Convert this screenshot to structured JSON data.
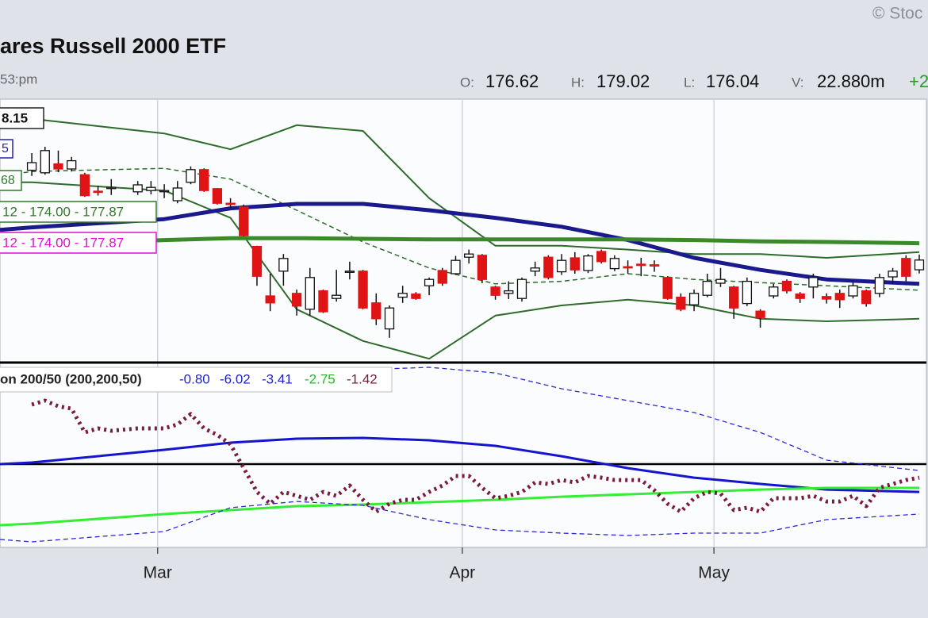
{
  "header": {
    "watermark": "© Stoc",
    "title": "ares Russell 2000 ETF",
    "time": "53:pm",
    "open_label": "O:",
    "open": "176.62",
    "high_label": "H:",
    "high": "179.02",
    "low_label": "L:",
    "low": "176.04",
    "volume_label": "V:",
    "volume": "22.880m",
    "change": "+2",
    "tags": [
      "8.15",
      "5",
      "68",
      "12 - 174.00 - 177.87",
      "12 - 174.00 - 177.87"
    ],
    "indicator_legend": "on 200/50 (200,200,50)",
    "indicator_values": [
      "-0.80",
      "-6.02",
      "-3.41",
      "-2.75",
      "-1.42"
    ]
  },
  "chart_data": [
    {
      "type": "candlestick",
      "x": [
        0,
        1,
        2,
        3,
        4,
        5,
        6,
        8,
        9,
        10,
        11,
        12,
        13,
        14,
        15,
        16,
        17,
        18,
        19,
        20,
        21,
        22,
        23,
        24,
        25,
        26,
        27,
        28,
        29,
        30,
        31,
        32,
        33,
        34,
        35,
        36,
        37,
        38,
        39,
        40,
        41,
        42,
        43,
        44,
        45,
        46,
        47,
        48,
        49,
        50,
        51,
        52,
        53,
        54,
        55,
        56,
        57,
        58,
        59,
        60,
        61,
        62,
        63,
        64,
        65,
        66,
        67
      ],
      "open": [
        192.3,
        191.9,
        193.3,
        192.5,
        191.6,
        189.0,
        189.5,
        188.9,
        189.1,
        189.0,
        187.5,
        190.4,
        192.4,
        189.4,
        187.1,
        186.5,
        180.3,
        172.5,
        176.4,
        172.9,
        170.4,
        173.3,
        172.1,
        176.3,
        176.4,
        171.4,
        167.3,
        172.3,
        172.8,
        174.1,
        176.5,
        176.0,
        178.6,
        178.9,
        173.9,
        172.9,
        172.1,
        176.4,
        178.6,
        176.3,
        178.5,
        176.5,
        179.5,
        176.8,
        177.1,
        177.5,
        177.4,
        175.4,
        172.3,
        171.1,
        172.6,
        174.5,
        173.9,
        171.3,
        170.1,
        172.5,
        174.8,
        172.8,
        173.9,
        172.4,
        172.9,
        172.5,
        173.3,
        172.9,
        175.5,
        178.4,
        176.62
      ],
      "high": [
        195.0,
        196.0,
        195.4,
        194.4,
        191.9,
        189.8,
        190.9,
        190.6,
        190.6,
        190.1,
        190.6,
        192.9,
        192.6,
        189.5,
        187.9,
        186.9,
        180.4,
        176.0,
        179.1,
        173.5,
        176.9,
        173.5,
        176.6,
        177.9,
        176.6,
        172.9,
        171.0,
        174.1,
        173.1,
        175.4,
        176.9,
        178.8,
        179.8,
        179.1,
        174.1,
        174.8,
        175.4,
        177.9,
        178.9,
        179.1,
        179.4,
        179.1,
        179.8,
        178.9,
        178.1,
        178.5,
        178.1,
        175.6,
        172.9,
        173.5,
        176.0,
        176.9,
        174.1,
        175.4,
        170.4,
        174.4,
        175.1,
        173.1,
        176.0,
        172.9,
        173.5,
        174.8,
        173.5,
        176.0,
        176.9,
        178.9,
        179.02
      ],
      "low": [
        191.4,
        191.6,
        192.0,
        192.1,
        188.1,
        188.3,
        188.4,
        188.4,
        188.5,
        187.9,
        187.1,
        190.1,
        188.9,
        186.9,
        186.4,
        181.9,
        174.1,
        170.1,
        174.1,
        169.4,
        169.4,
        169.8,
        171.6,
        175.1,
        170.4,
        167.9,
        165.9,
        171.4,
        171.9,
        172.6,
        174.1,
        175.8,
        177.6,
        174.5,
        171.9,
        172.0,
        171.6,
        175.6,
        175.1,
        175.8,
        176.0,
        176.1,
        177.6,
        176.4,
        176.0,
        175.6,
        176.3,
        171.9,
        170.1,
        170.1,
        172.3,
        173.9,
        168.9,
        170.9,
        167.5,
        172.1,
        172.9,
        171.4,
        172.1,
        171.3,
        170.6,
        172.1,
        170.8,
        172.3,
        174.4,
        174.8,
        176.04
      ],
      "close": [
        193.5,
        195.4,
        192.5,
        193.8,
        188.3,
        188.9,
        189.6,
        190.0,
        189.6,
        189.1,
        189.5,
        192.4,
        189.1,
        187.1,
        186.9,
        182.0,
        175.6,
        171.4,
        178.4,
        170.9,
        175.4,
        170.0,
        172.6,
        176.4,
        170.6,
        168.9,
        170.6,
        172.9,
        172.1,
        175.1,
        174.5,
        178.1,
        179.1,
        175.1,
        172.6,
        173.3,
        175.1,
        176.9,
        175.4,
        178.1,
        176.6,
        178.8,
        177.9,
        178.4,
        177.0,
        177.3,
        177.3,
        172.1,
        170.4,
        172.9,
        174.8,
        175.1,
        170.6,
        174.8,
        169.1,
        173.9,
        173.3,
        172.1,
        175.4,
        172.0,
        171.9,
        174.1,
        171.3,
        175.4,
        176.4,
        175.6,
        178.15
      ],
      "up_color": "#ffffff",
      "down_color": "#e01414",
      "xlim": [
        -2.4,
        67.66
      ],
      "ylim": [
        162,
        203.5
      ],
      "lines": [
        {
          "color": "#2f6b2a",
          "width": 2,
          "dash": null,
          "x": [
            -2.4,
            0,
            10,
            15,
            20,
            25,
            30,
            35,
            40,
            45,
            50,
            55,
            60,
            67
          ],
          "values": [
            200.6,
            200.4,
            198.1,
            195.6,
            199.4,
            198.5,
            187.9,
            180.4,
            180.4,
            179.8,
            179.1,
            179.1,
            178.5,
            179.4
          ]
        },
        {
          "color": "#2f6b2a",
          "width": 1.5,
          "dash": "6 4",
          "x": [
            -2.4,
            0,
            10,
            15,
            20,
            25,
            30,
            35,
            40,
            45,
            50,
            55,
            60,
            67
          ],
          "values": [
            191.4,
            192.1,
            192.6,
            190.9,
            186.0,
            181.0,
            176.9,
            174.4,
            174.8,
            176.0,
            175.1,
            174.6,
            174.1,
            173.4
          ]
        },
        {
          "color": "#2f6b2a",
          "width": 2,
          "dash": null,
          "x": [
            -2.4,
            0,
            10,
            15,
            20,
            25,
            30,
            35,
            40,
            45,
            50,
            55,
            60,
            67
          ],
          "values": [
            190.4,
            190.4,
            189.1,
            184.8,
            170.4,
            165.4,
            162.6,
            169.4,
            171.0,
            171.9,
            171.0,
            168.9,
            168.5,
            168.9
          ]
        },
        {
          "color": "#1a1a8c",
          "width": 5,
          "dash": null,
          "x": [
            -2.4,
            0,
            10,
            15,
            20,
            25,
            30,
            35,
            40,
            45,
            50,
            55,
            60,
            67
          ],
          "values": [
            182.9,
            183.3,
            184.6,
            186.3,
            187.0,
            187.0,
            186.0,
            184.8,
            183.4,
            181.3,
            178.5,
            176.6,
            175.1,
            174.4
          ]
        },
        {
          "color": "#3b8a2a",
          "width": 5,
          "dash": null,
          "x": [
            -2.4,
            0,
            10,
            15,
            20,
            25,
            30,
            35,
            40,
            45,
            50,
            55,
            60,
            67
          ],
          "values": [
            180.4,
            180.5,
            181.3,
            181.6,
            181.6,
            181.5,
            181.4,
            181.4,
            181.4,
            181.4,
            181.3,
            181.1,
            181.0,
            180.8
          ]
        }
      ]
    },
    {
      "type": "line",
      "xlim": [
        -2.4,
        67.66
      ],
      "ylim": [
        -8.75,
        10.42
      ],
      "xticks": [
        {
          "value": 9.5,
          "label": "Mar"
        },
        {
          "value": 32.5,
          "label": "Apr"
        },
        {
          "value": 51.5,
          "label": "May"
        }
      ],
      "zero_line": 0,
      "series": [
        {
          "color": "#1515d0",
          "width": 3,
          "dash": null,
          "x": [
            -2.4,
            0,
            10,
            15,
            20,
            25,
            30,
            35,
            40,
            45,
            50,
            55,
            60,
            67
          ],
          "values": [
            0,
            0.17,
            1.5,
            2.25,
            2.67,
            2.75,
            2.5,
            1.92,
            0.83,
            -0.42,
            -1.42,
            -2.08,
            -2.67,
            -2.92
          ]
        },
        {
          "color": "#33ee33",
          "width": 3,
          "dash": null,
          "x": [
            -2.4,
            0,
            10,
            15,
            20,
            25,
            30,
            35,
            40,
            45,
            50,
            55,
            60,
            67
          ],
          "values": [
            -6.42,
            -6.25,
            -5.25,
            -4.83,
            -4.42,
            -4.25,
            -4,
            -3.75,
            -3.42,
            -3.17,
            -2.92,
            -2.67,
            -2.5,
            -2.5
          ]
        },
        {
          "color": "#2a2ad0",
          "width": 1.3,
          "dash": "6 4",
          "x": [
            -2.4,
            0,
            10,
            15,
            20,
            25,
            30,
            35,
            40,
            45,
            50,
            55,
            60,
            67
          ],
          "values": [
            null,
            null,
            null,
            null,
            null,
            9.92,
            10.17,
            9.58,
            7.92,
            6.67,
            5.42,
            3.33,
            0.42,
            -0.67
          ]
        },
        {
          "color": "#2a2ad0",
          "width": 1.3,
          "dash": "6 4",
          "x": [
            -2.4,
            0,
            10,
            15,
            20,
            25,
            30,
            35,
            40,
            45,
            50,
            55,
            60,
            67
          ],
          "values": [
            -7.92,
            -8.17,
            -7.08,
            -4.58,
            -3.92,
            -4.33,
            -5.83,
            -6.92,
            -7.25,
            -7.5,
            -7.25,
            -7.25,
            -5.83,
            -5.25
          ]
        },
        {
          "color": "#7a1a40",
          "width": 5,
          "dash": "3 5",
          "x": [
            0,
            1,
            2,
            3,
            4,
            5,
            6,
            8,
            9,
            10,
            11,
            12,
            13,
            14,
            15,
            16,
            17,
            18,
            19,
            20,
            21,
            22,
            23,
            24,
            25,
            26,
            27,
            28,
            29,
            30,
            31,
            32,
            33,
            34,
            35,
            36,
            37,
            38,
            39,
            40,
            41,
            42,
            43,
            44,
            45,
            46,
            47,
            48,
            49,
            50,
            51,
            52,
            53,
            54,
            55,
            56,
            57,
            58,
            59,
            60,
            61,
            62,
            63,
            64,
            65,
            66,
            67
          ],
          "values": [
            6.25,
            6.67,
            6.08,
            5.83,
            3.33,
            3.75,
            3.5,
            3.75,
            3.75,
            3.75,
            4.17,
            5.25,
            3.75,
            3.08,
            2.08,
            -0.42,
            -2.92,
            -4.17,
            -2.92,
            -3.33,
            -3.75,
            -2.92,
            -3.33,
            -2.25,
            -3.75,
            -5,
            -4.17,
            -3.75,
            -3.75,
            -2.92,
            -2.25,
            -1.25,
            -1.25,
            -2.5,
            -3.58,
            -3.33,
            -2.92,
            -1.92,
            -2.08,
            -1.67,
            -1.92,
            -1.25,
            -1.42,
            -1.67,
            -1.67,
            -1.67,
            -2.75,
            -4.17,
            -5,
            -3.58,
            -2.92,
            -3.08,
            -4.83,
            -4.58,
            -5,
            -3.58,
            -3.58,
            -3.58,
            -3.33,
            -3.92,
            -3.92,
            -3.33,
            -4.42,
            -2.5,
            -2.08,
            -1.67,
            -1.42
          ]
        }
      ]
    }
  ]
}
